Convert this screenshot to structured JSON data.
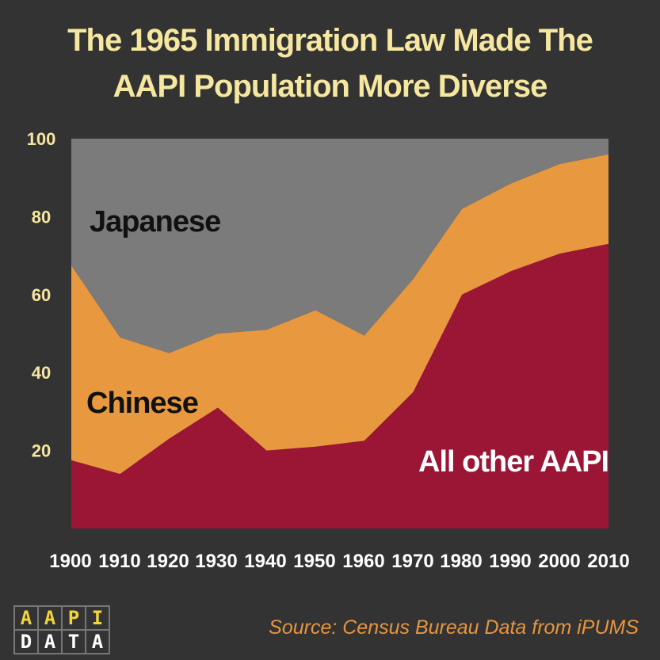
{
  "chart_data": {
    "type": "area",
    "stacked": true,
    "title_line1": "The 1965 Immigration Law Made The",
    "title_line2": "AAPI Population More Diverse",
    "x": [
      "1900",
      "1910",
      "1920",
      "1930",
      "1940",
      "1950",
      "1960",
      "1970",
      "1980",
      "1990",
      "2000",
      "2010"
    ],
    "ylim": [
      0,
      100
    ],
    "yticks": [
      "20",
      "40",
      "60",
      "80",
      "100"
    ],
    "series": [
      {
        "name": "All other AAPI",
        "color": "#9b1535",
        "values": [
          17.5,
          14,
          23,
          31,
          20,
          21,
          22.5,
          35,
          60,
          66,
          70.5,
          73
        ]
      },
      {
        "name": "Chinese",
        "color": "#e8983f",
        "values": [
          50,
          35,
          22,
          19,
          31,
          35,
          27,
          29,
          22,
          22.5,
          23,
          23
        ]
      },
      {
        "name": "Japanese",
        "color": "#7b7b7b",
        "values": [
          32.5,
          51,
          55,
          50,
          49,
          44,
          50.5,
          36,
          18,
          11.5,
          6.5,
          4
        ]
      }
    ],
    "annotations": [
      {
        "text": "Japanese",
        "series": "Japanese"
      },
      {
        "text": "Chinese",
        "series": "Chinese"
      },
      {
        "text": "All other AAPI",
        "series": "All other AAPI"
      }
    ],
    "grid": false,
    "legend": "none"
  },
  "logo": {
    "top": [
      "A",
      "A",
      "P",
      "I"
    ],
    "bottom": [
      "D",
      "A",
      "T",
      "A"
    ]
  },
  "source": "Source: Census Bureau Data from iPUMS"
}
